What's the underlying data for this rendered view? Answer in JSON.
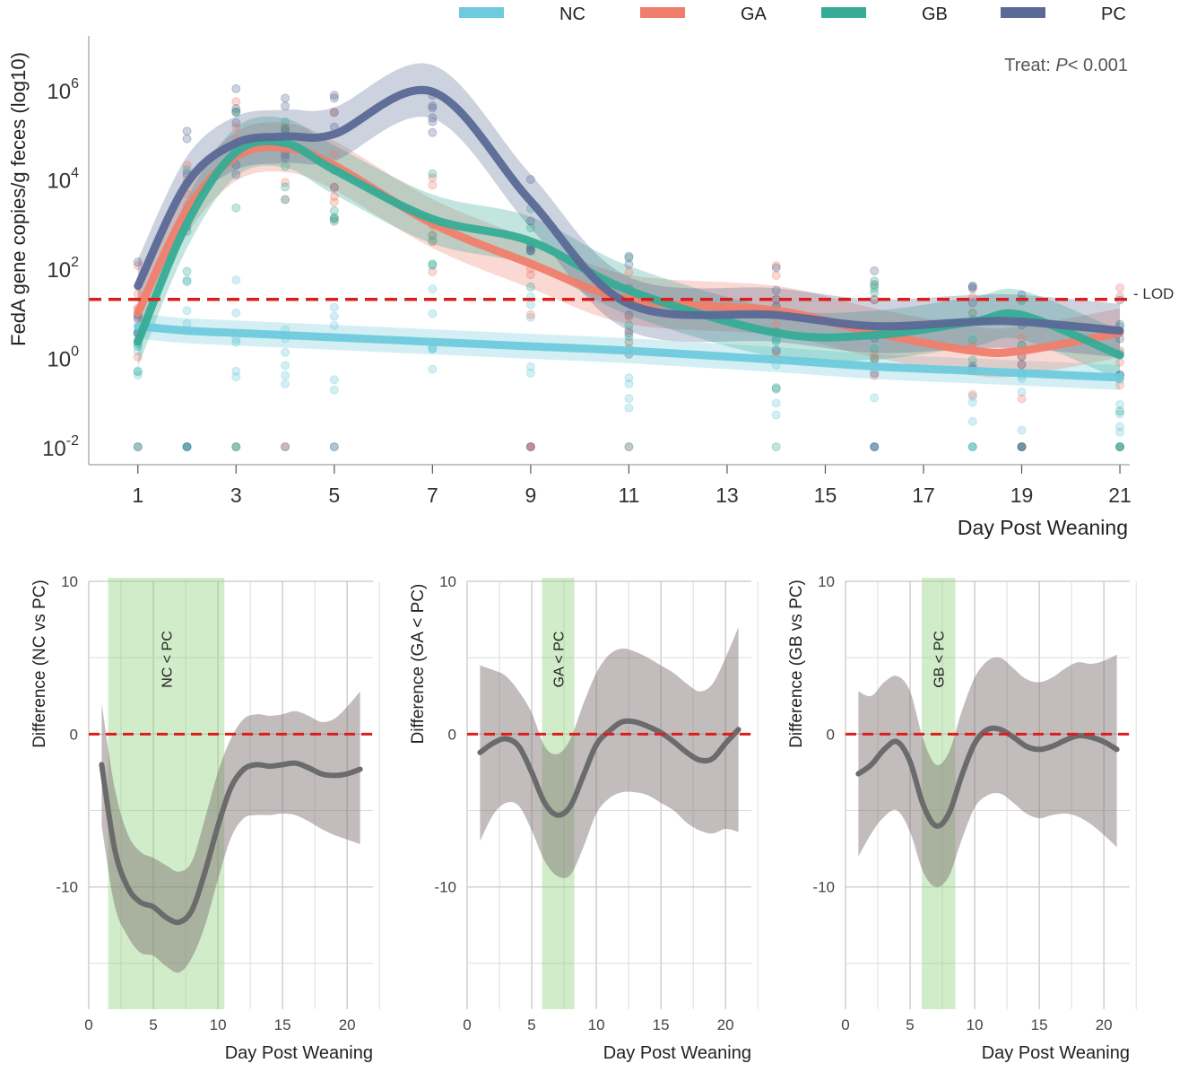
{
  "chart_data": [
    {
      "type": "line",
      "legend": [
        {
          "name": "NC",
          "color": "#6ecadc"
        },
        {
          "name": "GA",
          "color": "#ef7e6c"
        },
        {
          "name": "GB",
          "color": "#36ac96"
        },
        {
          "name": "PC",
          "color": "#5a6996"
        }
      ],
      "annotation": {
        "prefix": "Treat: ",
        "p_symbol": "P",
        "rest": "< 0.001"
      },
      "lod_label": "- LOD",
      "lod_log10": 1.3,
      "ylabel": "FedA gene copies/g feces (log10)",
      "xlabel": "Day Post Weaning",
      "x_ticks": [
        1,
        3,
        5,
        7,
        9,
        11,
        13,
        15,
        17,
        19,
        21
      ],
      "y_ticks": [
        {
          "value": 6,
          "base": "10",
          "exp": "6"
        },
        {
          "value": 4,
          "base": "10",
          "exp": "4"
        },
        {
          "value": 2,
          "base": "10",
          "exp": "2"
        },
        {
          "value": 0,
          "base": "10",
          "exp": "0"
        },
        {
          "value": -2,
          "base": "10",
          "exp": "-2"
        }
      ],
      "xlim": [
        0,
        21.2
      ],
      "ylim_log10": [
        -2.4,
        7.2
      ],
      "x": [
        1,
        2,
        3,
        4,
        5,
        7,
        9,
        11,
        14,
        16,
        18,
        19,
        21
      ],
      "series": [
        {
          "name": "NC",
          "color": "#6ecadc",
          "log10": [
            0.7,
            0.6,
            0.55,
            0.5,
            0.45,
            0.35,
            0.25,
            0.15,
            -0.05,
            -0.2,
            -0.3,
            -0.35,
            -0.45
          ],
          "band": 0.28
        },
        {
          "name": "GA",
          "color": "#ef7e6c",
          "log10": [
            1.0,
            3.3,
            4.5,
            4.7,
            4.3,
            3.0,
            2.1,
            1.3,
            1.05,
            0.55,
            0.15,
            0.15,
            0.55
          ],
          "band": 0.55
        },
        {
          "name": "GB",
          "color": "#36ac96",
          "log10": [
            0.35,
            3.0,
            4.6,
            4.8,
            4.2,
            3.1,
            2.6,
            1.5,
            0.55,
            0.5,
            0.8,
            0.95,
            0.05
          ],
          "band": 0.55
        },
        {
          "name": "PC",
          "color": "#5a6996",
          "log10": [
            1.6,
            3.9,
            4.8,
            4.95,
            5.0,
            5.95,
            3.5,
            1.2,
            0.95,
            0.7,
            0.8,
            0.8,
            0.6
          ],
          "band": 0.6
        }
      ]
    },
    {
      "type": "area",
      "ylabel": "Difference (NC vs PC)",
      "xlabel": "Day Post Weaning",
      "sig_label": "NC < PC",
      "sig_range": [
        1.5,
        10.5
      ],
      "x_ticks": [
        0,
        5,
        10,
        15,
        20
      ],
      "y_ticks": [
        10,
        0,
        -10
      ],
      "xlim": [
        0,
        22
      ],
      "ylim": [
        -18,
        10
      ],
      "x": [
        1,
        2,
        3,
        4,
        5,
        6,
        7,
        8,
        9,
        10,
        11,
        12,
        13,
        14,
        15,
        16,
        17,
        18,
        19,
        20,
        21
      ],
      "values": [
        -2,
        -7.5,
        -10,
        -11,
        -11.3,
        -12,
        -12.3,
        -11.5,
        -9,
        -6,
        -3.5,
        -2.3,
        -2,
        -2.1,
        -2,
        -1.9,
        -2.2,
        -2.6,
        -2.7,
        -2.6,
        -2.3
      ],
      "lower": [
        -6,
        -11.2,
        -13.2,
        -14.3,
        -14.5,
        -15.2,
        -15.6,
        -14.6,
        -12.5,
        -9.5,
        -6.8,
        -5.5,
        -5.3,
        -5.3,
        -5.2,
        -5.3,
        -5.7,
        -6.2,
        -6.6,
        -6.9,
        -7.2
      ],
      "upper": [
        2,
        -3.5,
        -6.5,
        -7.7,
        -8.1,
        -8.6,
        -9,
        -8.3,
        -5.5,
        -2.5,
        -0.3,
        1,
        1.3,
        1.2,
        1.3,
        1.5,
        1.2,
        0.8,
        1,
        1.8,
        2.8
      ]
    },
    {
      "type": "area",
      "ylabel": "Difference (GA < PC)",
      "xlabel": "Day Post Weaning",
      "sig_label": "GA < PC",
      "sig_range": [
        5.8,
        8.3
      ],
      "x_ticks": [
        0,
        5,
        10,
        15,
        20
      ],
      "y_ticks": [
        10,
        0,
        -10
      ],
      "xlim": [
        0,
        22
      ],
      "ylim": [
        -18,
        10
      ],
      "x": [
        1,
        2,
        3,
        4,
        5,
        6,
        7,
        8,
        9,
        10,
        11,
        12,
        13,
        14,
        15,
        16,
        17,
        18,
        19,
        20,
        21
      ],
      "values": [
        -1.2,
        -0.6,
        -0.3,
        -0.8,
        -2.5,
        -4.5,
        -5.3,
        -4.7,
        -2.7,
        -0.7,
        0.2,
        0.8,
        0.8,
        0.5,
        0.1,
        -0.5,
        -1.2,
        -1.7,
        -1.6,
        -0.6,
        0.3
      ],
      "lower": [
        -7,
        -5.3,
        -4.5,
        -4.7,
        -6.3,
        -8.3,
        -9.3,
        -9.2,
        -7.4,
        -5.2,
        -4.2,
        -3.8,
        -3.8,
        -4,
        -4.5,
        -5,
        -5.8,
        -6.3,
        -6.5,
        -6.2,
        -6.4
      ],
      "upper": [
        4.5,
        4.2,
        3.8,
        2.8,
        1.4,
        -0.8,
        -1.3,
        -0.3,
        2,
        4,
        5.2,
        5.6,
        5.4,
        5,
        4.5,
        4,
        3.3,
        2.8,
        3.3,
        5,
        7
      ]
    },
    {
      "type": "area",
      "ylabel": "Difference (GB vs PC)",
      "xlabel": "Day Post Weaning",
      "sig_label": "GB < PC",
      "sig_range": [
        5.9,
        8.5
      ],
      "x_ticks": [
        0,
        5,
        10,
        15,
        20
      ],
      "y_ticks": [
        10,
        0,
        -10
      ],
      "xlim": [
        0,
        22
      ],
      "ylim": [
        -18,
        10
      ],
      "x": [
        1,
        2,
        3,
        4,
        5,
        6,
        7,
        8,
        9,
        10,
        11,
        12,
        13,
        14,
        15,
        16,
        17,
        18,
        19,
        20,
        21
      ],
      "values": [
        -2.6,
        -2,
        -1,
        -0.5,
        -1.8,
        -4.6,
        -6,
        -5.2,
        -2.7,
        -0.6,
        0.3,
        0.3,
        -0.2,
        -0.8,
        -1,
        -0.8,
        -0.4,
        -0.1,
        -0.2,
        -0.5,
        -1
      ],
      "lower": [
        -8,
        -6.5,
        -5.4,
        -5,
        -6.4,
        -9,
        -10,
        -9.3,
        -6.9,
        -4.8,
        -4,
        -3.9,
        -4.5,
        -5.2,
        -5.5,
        -5.3,
        -5.2,
        -5.4,
        -5.9,
        -6.6,
        -7.4
      ],
      "upper": [
        2.8,
        2.5,
        3.4,
        3.8,
        2.8,
        -0.3,
        -2,
        -1.2,
        1.5,
        3.7,
        4.8,
        5,
        4.3,
        3.6,
        3.4,
        3.7,
        4.3,
        4.7,
        4.6,
        4.8,
        5.2
      ]
    }
  ]
}
